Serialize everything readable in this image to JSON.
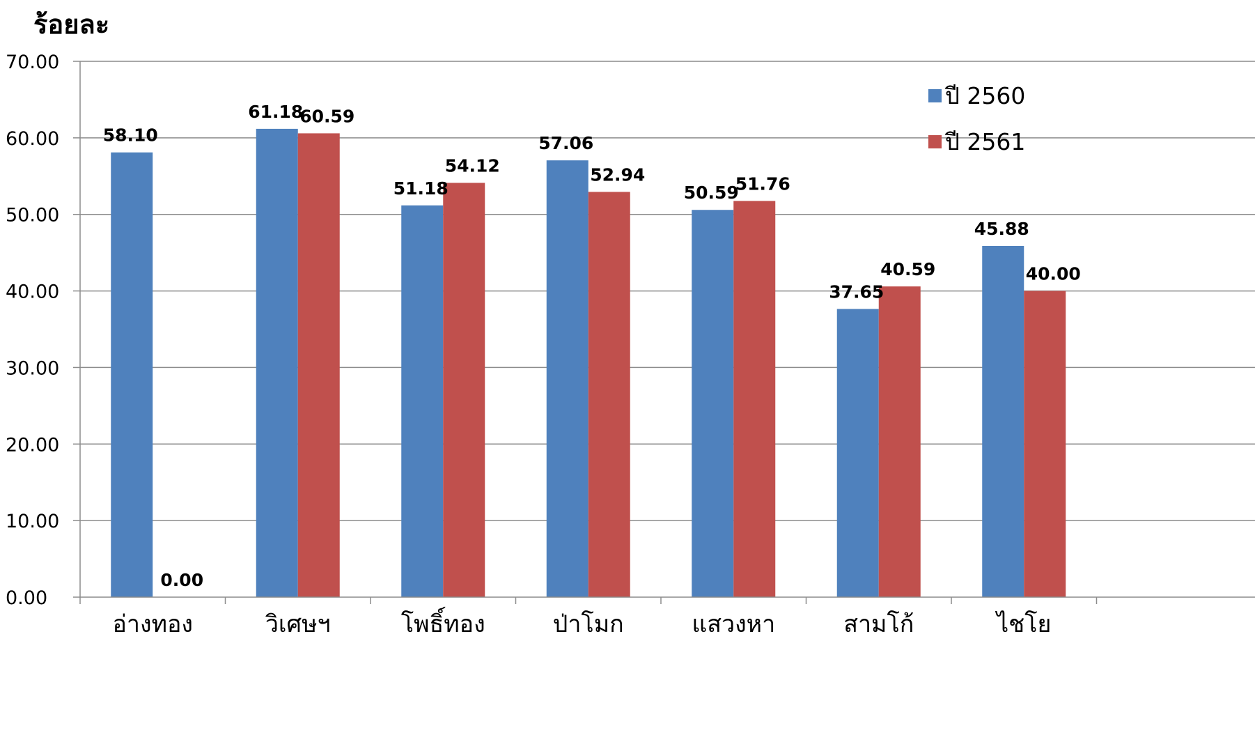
{
  "chart_data": {
    "type": "bar",
    "ylabel": "ร้อยละ",
    "xlabel": "",
    "title": "",
    "ylim": [
      0,
      70
    ],
    "yticks": [
      "0.00",
      "10.00",
      "20.00",
      "30.00",
      "40.00",
      "50.00",
      "60.00",
      "70.00"
    ],
    "grid": true,
    "legend_position": "top-right",
    "categories": [
      "อ่างทอง",
      "วิเศษฯ",
      "โพธิ์ทอง",
      "ป่าโมก",
      "แสวงหา",
      "สามโก้",
      "ไชโย"
    ],
    "series": [
      {
        "name": "ปี 2560",
        "color": "#4F81BD",
        "values": [
          58.1,
          61.18,
          51.18,
          57.06,
          50.59,
          37.65,
          45.88
        ],
        "labels": [
          "58.10",
          "61.18",
          "51.18",
          "57.06",
          "50.59",
          "37.65",
          "45.88"
        ]
      },
      {
        "name": "ปี 2561",
        "color": "#C0504D",
        "values": [
          0.0,
          60.59,
          54.12,
          52.94,
          51.76,
          40.59,
          40.0
        ],
        "labels": [
          "0.00",
          "60.59",
          "54.12",
          "52.94",
          "51.76",
          "40.59",
          "40.00"
        ]
      }
    ]
  }
}
